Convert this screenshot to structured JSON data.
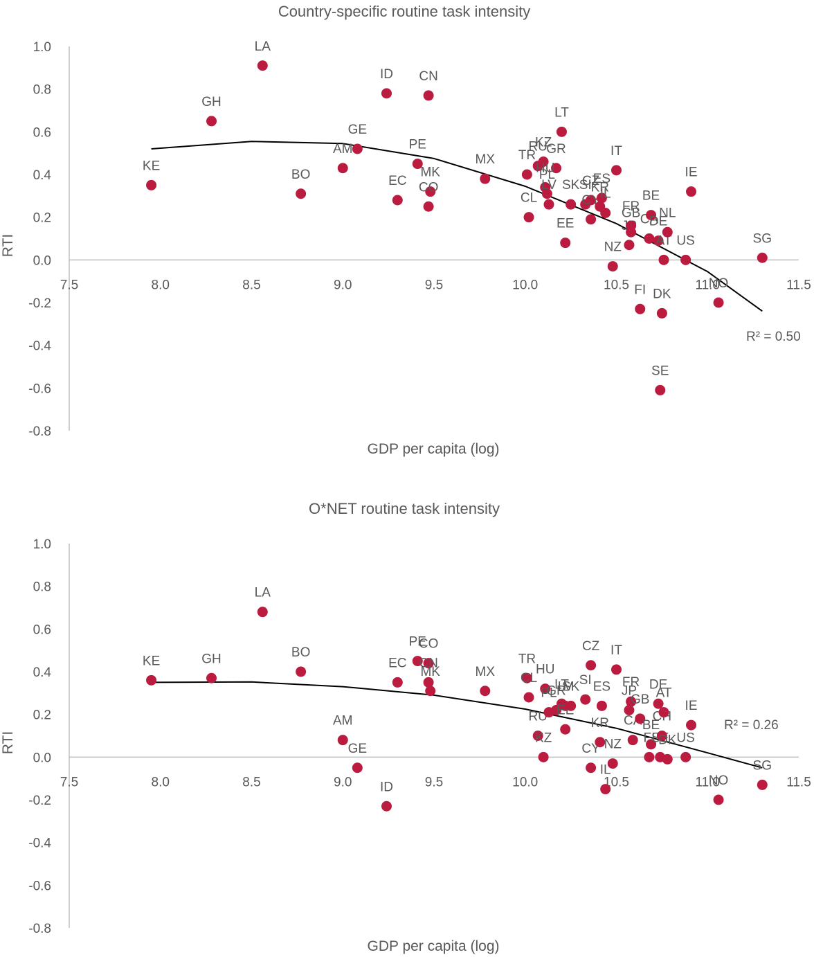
{
  "colors": {
    "point": "#BA1B3E",
    "trend": "#000000",
    "axis": "#BFBFBF",
    "text": "#595959"
  },
  "chart_data": [
    {
      "type": "scatter",
      "title": "Country-specific routine task intensity",
      "xlabel": "GDP per capita (log)",
      "ylabel": "RTI",
      "xlim": [
        7.5,
        11.5
      ],
      "ylim": [
        -0.8,
        1.0
      ],
      "xticks": [
        "7.5",
        "8.0",
        "8.5",
        "9.0",
        "9.5",
        "10.0",
        "10.5",
        "11.0",
        "11.5"
      ],
      "yticks": [
        "1.0",
        "0.8",
        "0.6",
        "0.4",
        "0.2",
        "0.0",
        "-0.2",
        "-0.4",
        "-0.6",
        "-0.8"
      ],
      "trendline": {
        "type": "polynomial-2",
        "x_range": [
          7.95,
          11.3
        ],
        "points": [
          [
            7.95,
            0.52
          ],
          [
            8.5,
            0.555
          ],
          [
            9.0,
            0.545
          ],
          [
            9.5,
            0.475
          ],
          [
            10.0,
            0.345
          ],
          [
            10.5,
            0.17
          ],
          [
            11.0,
            -0.055
          ],
          [
            11.3,
            -0.24
          ]
        ],
        "r2_label": "R² = 0.50"
      },
      "points": [
        {
          "label": "KE",
          "x": 7.95,
          "y": 0.35
        },
        {
          "label": "GH",
          "x": 8.28,
          "y": 0.65
        },
        {
          "label": "LA",
          "x": 8.56,
          "y": 0.91
        },
        {
          "label": "BO",
          "x": 8.77,
          "y": 0.31
        },
        {
          "label": "AM",
          "x": 9.0,
          "y": 0.43
        },
        {
          "label": "GE",
          "x": 9.08,
          "y": 0.52
        },
        {
          "label": "ID",
          "x": 9.24,
          "y": 0.78
        },
        {
          "label": "EC",
          "x": 9.3,
          "y": 0.28
        },
        {
          "label": "PE",
          "x": 9.41,
          "y": 0.45
        },
        {
          "label": "CN",
          "x": 9.47,
          "y": 0.77
        },
        {
          "label": "MK",
          "x": 9.48,
          "y": 0.32
        },
        {
          "label": "CO",
          "x": 9.47,
          "y": 0.25
        },
        {
          "label": "MX",
          "x": 9.78,
          "y": 0.38
        },
        {
          "label": "TR",
          "x": 10.01,
          "y": 0.4
        },
        {
          "label": "CL",
          "x": 10.02,
          "y": 0.2
        },
        {
          "label": "RU",
          "x": 10.07,
          "y": 0.44
        },
        {
          "label": "KZ",
          "x": 10.1,
          "y": 0.46
        },
        {
          "label": "GR",
          "x": 10.17,
          "y": 0.43
        },
        {
          "label": "HU",
          "x": 10.11,
          "y": 0.34
        },
        {
          "label": "PL",
          "x": 10.12,
          "y": 0.31
        },
        {
          "label": "LT",
          "x": 10.2,
          "y": 0.6
        },
        {
          "label": "LV",
          "x": 10.13,
          "y": 0.26
        },
        {
          "label": "EE",
          "x": 10.22,
          "y": 0.08
        },
        {
          "label": "SK",
          "x": 10.25,
          "y": 0.26
        },
        {
          "label": "SI",
          "x": 10.33,
          "y": 0.26
        },
        {
          "label": "CZ",
          "x": 10.36,
          "y": 0.28
        },
        {
          "label": "CY",
          "x": 10.36,
          "y": 0.19
        },
        {
          "label": "ES",
          "x": 10.42,
          "y": 0.29
        },
        {
          "label": "KR",
          "x": 10.41,
          "y": 0.25
        },
        {
          "label": "IL",
          "x": 10.44,
          "y": 0.22
        },
        {
          "label": "IT",
          "x": 10.5,
          "y": 0.42
        },
        {
          "label": "NZ",
          "x": 10.48,
          "y": -0.03
        },
        {
          "label": "JP",
          "x": 10.57,
          "y": 0.07
        },
        {
          "label": "FR",
          "x": 10.58,
          "y": 0.16
        },
        {
          "label": "GB",
          "x": 10.58,
          "y": 0.13
        },
        {
          "label": "CA",
          "x": 10.68,
          "y": 0.1
        },
        {
          "label": "BE",
          "x": 10.69,
          "y": 0.21
        },
        {
          "label": "DE",
          "x": 10.73,
          "y": 0.09
        },
        {
          "label": "AT",
          "x": 10.76,
          "y": 0.0
        },
        {
          "label": "NL",
          "x": 10.78,
          "y": 0.13
        },
        {
          "label": "FI",
          "x": 10.63,
          "y": -0.23
        },
        {
          "label": "DK",
          "x": 10.75,
          "y": -0.25
        },
        {
          "label": "SE",
          "x": 10.74,
          "y": -0.61
        },
        {
          "label": "IE",
          "x": 10.91,
          "y": 0.32
        },
        {
          "label": "US",
          "x": 10.88,
          "y": 0.0
        },
        {
          "label": "NO",
          "x": 11.06,
          "y": -0.2
        },
        {
          "label": "SG",
          "x": 11.3,
          "y": 0.01
        }
      ]
    },
    {
      "type": "scatter",
      "title": "O*NET routine task intensity",
      "xlabel": "GDP per capita (log)",
      "ylabel": "RTI",
      "xlim": [
        7.5,
        11.5
      ],
      "ylim": [
        -0.8,
        1.0
      ],
      "xticks": [
        "7.5",
        "8.0",
        "8.5",
        "9.0",
        "9.5",
        "10.0",
        "10.5",
        "11.0",
        "11.5"
      ],
      "yticks": [
        "1.0",
        "0.8",
        "0.6",
        "0.4",
        "0.2",
        "0.0",
        "-0.2",
        "-0.4",
        "-0.6",
        "-0.8"
      ],
      "trendline": {
        "type": "polynomial-2",
        "x_range": [
          7.95,
          11.3
        ],
        "points": [
          [
            7.95,
            0.35
          ],
          [
            8.5,
            0.352
          ],
          [
            9.0,
            0.33
          ],
          [
            9.5,
            0.29
          ],
          [
            10.0,
            0.225
          ],
          [
            10.5,
            0.135
          ],
          [
            11.0,
            0.02
          ],
          [
            11.3,
            -0.05
          ]
        ],
        "r2_label": "R² = 0.26"
      },
      "points": [
        {
          "label": "KE",
          "x": 7.95,
          "y": 0.36
        },
        {
          "label": "GH",
          "x": 8.28,
          "y": 0.37
        },
        {
          "label": "LA",
          "x": 8.56,
          "y": 0.68
        },
        {
          "label": "BO",
          "x": 8.77,
          "y": 0.4
        },
        {
          "label": "AM",
          "x": 9.0,
          "y": 0.08
        },
        {
          "label": "GE",
          "x": 9.08,
          "y": -0.05
        },
        {
          "label": "ID",
          "x": 9.24,
          "y": -0.23
        },
        {
          "label": "EC",
          "x": 9.3,
          "y": 0.35
        },
        {
          "label": "PE",
          "x": 9.41,
          "y": 0.45
        },
        {
          "label": "CO",
          "x": 9.47,
          "y": 0.44
        },
        {
          "label": "CN",
          "x": 9.47,
          "y": 0.35
        },
        {
          "label": "MK",
          "x": 9.48,
          "y": 0.31
        },
        {
          "label": "MX",
          "x": 9.78,
          "y": 0.31
        },
        {
          "label": "TR",
          "x": 10.01,
          "y": 0.37
        },
        {
          "label": "CL",
          "x": 10.02,
          "y": 0.28
        },
        {
          "label": "RU",
          "x": 10.07,
          "y": 0.1
        },
        {
          "label": "KZ",
          "x": 10.1,
          "y": 0.0
        },
        {
          "label": "HU",
          "x": 10.11,
          "y": 0.32
        },
        {
          "label": "PL",
          "x": 10.13,
          "y": 0.21
        },
        {
          "label": "GR",
          "x": 10.17,
          "y": 0.22
        },
        {
          "label": "LT",
          "x": 10.2,
          "y": 0.25
        },
        {
          "label": "LV",
          "x": 10.22,
          "y": 0.24
        },
        {
          "label": "EE",
          "x": 10.22,
          "y": 0.13
        },
        {
          "label": "SK",
          "x": 10.25,
          "y": 0.24
        },
        {
          "label": "SI",
          "x": 10.33,
          "y": 0.27
        },
        {
          "label": "CZ",
          "x": 10.36,
          "y": 0.43
        },
        {
          "label": "CY",
          "x": 10.36,
          "y": -0.05
        },
        {
          "label": "KR",
          "x": 10.41,
          "y": 0.07
        },
        {
          "label": "ES",
          "x": 10.42,
          "y": 0.24
        },
        {
          "label": "IL",
          "x": 10.44,
          "y": -0.15
        },
        {
          "label": "NZ",
          "x": 10.48,
          "y": -0.03
        },
        {
          "label": "IT",
          "x": 10.5,
          "y": 0.41
        },
        {
          "label": "JP",
          "x": 10.57,
          "y": 0.22
        },
        {
          "label": "FR",
          "x": 10.58,
          "y": 0.26
        },
        {
          "label": "CA",
          "x": 10.59,
          "y": 0.08
        },
        {
          "label": "GB",
          "x": 10.63,
          "y": 0.18
        },
        {
          "label": "FI",
          "x": 10.68,
          "y": 0.0
        },
        {
          "label": "BE",
          "x": 10.69,
          "y": 0.06
        },
        {
          "label": "DE",
          "x": 10.73,
          "y": 0.25
        },
        {
          "label": "SE",
          "x": 10.74,
          "y": 0.0
        },
        {
          "label": "CH",
          "x": 10.75,
          "y": 0.1
        },
        {
          "label": "AT",
          "x": 10.76,
          "y": 0.21
        },
        {
          "label": "DK",
          "x": 10.78,
          "y": -0.01
        },
        {
          "label": "IE",
          "x": 10.91,
          "y": 0.15
        },
        {
          "label": "US",
          "x": 10.88,
          "y": 0.0
        },
        {
          "label": "NO",
          "x": 11.06,
          "y": -0.2
        },
        {
          "label": "SG",
          "x": 11.3,
          "y": -0.13
        }
      ]
    }
  ]
}
